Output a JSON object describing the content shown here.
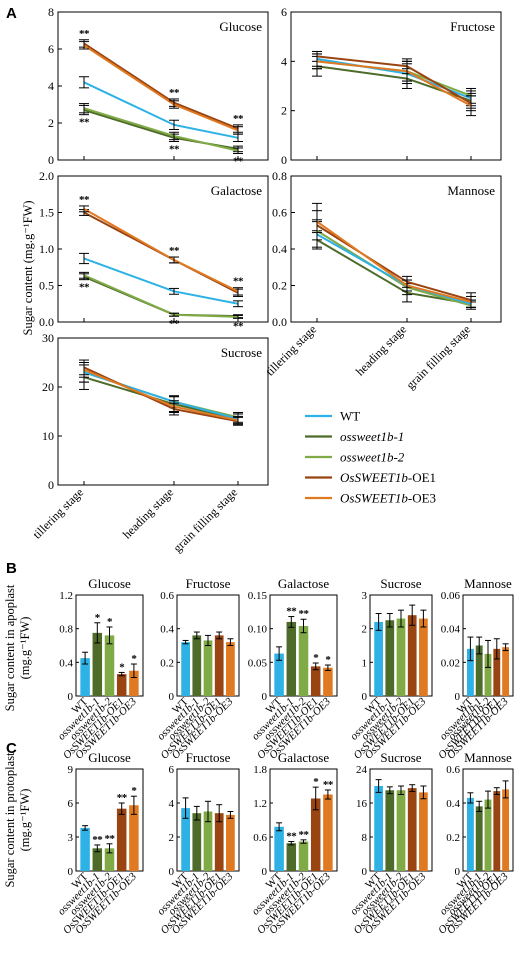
{
  "panels": {
    "A": "A",
    "B": "B",
    "C": "C"
  },
  "labels": {
    "A_ylabel": "Sugar content (mg.g⁻¹FW)",
    "B_ylabel_1": "Sugar content in apoplast",
    "B_ylabel_2": "(mg.g⁻¹FW)",
    "C_ylabel_1": "Sugar content in protoplast",
    "C_ylabel_2": "(mg.g⁻¹FW)"
  },
  "colors": {
    "WT": "#2eb2e6",
    "ossweet1b-1": "#4e6b2a",
    "ossweet1b-2": "#7faa45",
    "OsSWEET1b-OE1": "#9a4412",
    "OsSWEET1b-OE3": "#e07a22"
  },
  "legend": [
    {
      "prefix": "",
      "italic": "",
      "suffix": "WT",
      "key": "WT"
    },
    {
      "prefix": "",
      "italic": "ossweet1b-1",
      "suffix": "",
      "key": "ossweet1b-1"
    },
    {
      "prefix": "",
      "italic": "ossweet1b-2",
      "suffix": "",
      "key": "ossweet1b-2"
    },
    {
      "prefix": "",
      "italic": "OsSWEET1b",
      "suffix": "-OE1",
      "key": "OsSWEET1b-OE1"
    },
    {
      "prefix": "",
      "italic": "OsSWEET1b",
      "suffix": "-OE3",
      "key": "OsSWEET1b-OE3"
    }
  ],
  "chart_data": [
    {
      "panel": "A",
      "type": "line",
      "title": "Glucose",
      "categories": [
        "tillering stage",
        "heading stage",
        "grain filling stage"
      ],
      "ylim": [
        0,
        8
      ],
      "yticks": [
        0,
        2,
        4,
        6,
        8
      ],
      "series": [
        {
          "name": "WT",
          "values": [
            4.2,
            1.9,
            1.2
          ],
          "errors": [
            0.3,
            0.25,
            0.2
          ]
        },
        {
          "name": "ossweet1b-1",
          "values": [
            2.7,
            1.2,
            0.6
          ],
          "errors": [
            0.25,
            0.2,
            0.15
          ]
        },
        {
          "name": "ossweet1b-2",
          "values": [
            2.8,
            1.3,
            0.5
          ],
          "errors": [
            0.25,
            0.2,
            0.15
          ]
        },
        {
          "name": "OsSWEET1b-OE1",
          "values": [
            6.3,
            3.1,
            1.7
          ],
          "errors": [
            0.2,
            0.2,
            0.2
          ]
        },
        {
          "name": "OsSWEET1b-OE3",
          "values": [
            6.2,
            3.0,
            1.6
          ],
          "errors": [
            0.2,
            0.2,
            0.2
          ]
        }
      ],
      "annotations": [
        "**",
        "**",
        "**",
        "**",
        "**",
        "**"
      ]
    },
    {
      "panel": "A",
      "type": "line",
      "title": "Fructose",
      "categories": [
        "tillering stage",
        "heading stage",
        "grain filling stage"
      ],
      "ylim": [
        0,
        6
      ],
      "yticks": [
        0,
        2,
        4,
        6
      ],
      "series": [
        {
          "name": "WT",
          "values": [
            4.1,
            3.5,
            2.5
          ],
          "errors": [
            0.3,
            0.4,
            0.3
          ]
        },
        {
          "name": "ossweet1b-1",
          "values": [
            3.8,
            3.3,
            2.4
          ],
          "errors": [
            0.4,
            0.4,
            0.3
          ]
        },
        {
          "name": "ossweet1b-2",
          "values": [
            4.0,
            3.6,
            2.6
          ],
          "errors": [
            0.3,
            0.4,
            0.3
          ]
        },
        {
          "name": "OsSWEET1b-OE1",
          "values": [
            4.2,
            3.8,
            2.3
          ],
          "errors": [
            0.2,
            0.3,
            0.3
          ]
        },
        {
          "name": "OsSWEET1b-OE3",
          "values": [
            4.0,
            3.6,
            2.2
          ],
          "errors": [
            0.3,
            0.4,
            0.4
          ]
        }
      ]
    },
    {
      "panel": "A",
      "type": "line",
      "title": "Galactose",
      "categories": [
        "tillering stage",
        "heading stage",
        "grain filling stage"
      ],
      "ylim": [
        0,
        2.0
      ],
      "yticks": [
        0.0,
        0.5,
        1.0,
        1.5,
        2.0
      ],
      "series": [
        {
          "name": "WT",
          "values": [
            0.87,
            0.42,
            0.25
          ],
          "errors": [
            0.07,
            0.04,
            0.04
          ]
        },
        {
          "name": "ossweet1b-1",
          "values": [
            0.62,
            0.1,
            0.08
          ],
          "errors": [
            0.04,
            0.02,
            0.02
          ]
        },
        {
          "name": "ossweet1b-2",
          "values": [
            0.64,
            0.1,
            0.07
          ],
          "errors": [
            0.04,
            0.02,
            0.02
          ]
        },
        {
          "name": "OsSWEET1b-OE1",
          "values": [
            1.5,
            0.85,
            0.4
          ],
          "errors": [
            0.04,
            0.04,
            0.05
          ]
        },
        {
          "name": "OsSWEET1b-OE3",
          "values": [
            1.55,
            0.85,
            0.42
          ],
          "errors": [
            0.04,
            0.04,
            0.05
          ]
        }
      ],
      "annotations": [
        "**",
        "**",
        "**",
        "**",
        "**",
        "**"
      ]
    },
    {
      "panel": "A",
      "type": "line",
      "title": "Mannose",
      "categories": [
        "tillering stage",
        "heading stage",
        "grain filling stage"
      ],
      "ylim": [
        0,
        0.8
      ],
      "yticks": [
        0.0,
        0.2,
        0.4,
        0.6,
        0.8
      ],
      "series": [
        {
          "name": "WT",
          "values": [
            0.48,
            0.2,
            0.1
          ],
          "errors": [
            0.08,
            0.03,
            0.02
          ]
        },
        {
          "name": "ossweet1b-1",
          "values": [
            0.45,
            0.16,
            0.1
          ],
          "errors": [
            0.05,
            0.05,
            0.02
          ]
        },
        {
          "name": "ossweet1b-2",
          "values": [
            0.5,
            0.19,
            0.09
          ],
          "errors": [
            0.05,
            0.04,
            0.02
          ]
        },
        {
          "name": "OsSWEET1b-OE1",
          "values": [
            0.53,
            0.22,
            0.12
          ],
          "errors": [
            0.12,
            0.03,
            0.04
          ]
        },
        {
          "name": "OsSWEET1b-OE3",
          "values": [
            0.55,
            0.2,
            0.11
          ],
          "errors": [
            0.06,
            0.03,
            0.03
          ]
        }
      ]
    },
    {
      "panel": "A",
      "type": "line",
      "title": "Sucrose",
      "categories": [
        "tillering stage",
        "heading stage",
        "grain filling stage"
      ],
      "ylim": [
        0,
        30
      ],
      "yticks": [
        0,
        10,
        20,
        30
      ],
      "series": [
        {
          "name": "WT",
          "values": [
            23,
            17,
            13.5
          ],
          "errors": [
            2,
            1.2,
            1
          ]
        },
        {
          "name": "ossweet1b-1",
          "values": [
            22,
            16.5,
            13.5
          ],
          "errors": [
            2.5,
            1.5,
            1
          ]
        },
        {
          "name": "ossweet1b-2",
          "values": [
            23,
            17,
            13.8
          ],
          "errors": [
            2,
            1.2,
            1
          ]
        },
        {
          "name": "OsSWEET1b-OE1",
          "values": [
            24,
            15.5,
            13
          ],
          "errors": [
            1.5,
            1.2,
            0.8
          ]
        },
        {
          "name": "OsSWEET1b-OE3",
          "values": [
            23.5,
            16,
            13.2
          ],
          "errors": [
            1.5,
            1.2,
            0.8
          ]
        }
      ]
    },
    {
      "panel": "B",
      "type": "bar",
      "title": "Glucose",
      "categories": [
        "WT",
        "ossweet1b-1",
        "ossweet1b-2",
        "OsSWEET1b-OE1",
        "OsSWEET1b-OE3"
      ],
      "ylim": [
        0,
        1.2
      ],
      "yticks": [
        0,
        0.4,
        0.8,
        1.2
      ],
      "ytick_labels": [
        "0",
        "0.4",
        "0.8",
        "1.2"
      ],
      "values": [
        0.45,
        0.75,
        0.72,
        0.26,
        0.3
      ],
      "errors": [
        0.07,
        0.12,
        0.1,
        0.02,
        0.08
      ],
      "stars": [
        "",
        "*",
        "*",
        "*",
        "*"
      ]
    },
    {
      "panel": "B",
      "type": "bar",
      "title": "Fructose",
      "categories": [
        "WT",
        "ossweet1b-1",
        "ossweet1b-2",
        "OsSWEET1b-OE1",
        "OsSWEET1b-OE3"
      ],
      "ylim": [
        0,
        0.6
      ],
      "yticks": [
        0,
        0.2,
        0.4,
        0.6
      ],
      "ytick_labels": [
        "0",
        "0.2",
        "0.4",
        "0.6"
      ],
      "values": [
        0.32,
        0.36,
        0.33,
        0.36,
        0.32
      ],
      "errors": [
        0.01,
        0.02,
        0.03,
        0.02,
        0.02
      ],
      "stars": [
        "",
        "",
        "",
        "",
        ""
      ]
    },
    {
      "panel": "B",
      "type": "bar",
      "title": "Galactose",
      "categories": [
        "WT",
        "ossweet1b-1",
        "ossweet1b-2",
        "OsSWEET1b-OE1",
        "OsSWEET1b-OE3"
      ],
      "ylim": [
        0,
        0.15
      ],
      "yticks": [
        0,
        0.05,
        0.1,
        0.15
      ],
      "ytick_labels": [
        "0",
        "0.05",
        "0.10",
        "0.15"
      ],
      "values": [
        0.063,
        0.11,
        0.104,
        0.044,
        0.042
      ],
      "errors": [
        0.01,
        0.008,
        0.01,
        0.005,
        0.004
      ],
      "stars": [
        "",
        "**",
        "**",
        "*",
        "*"
      ]
    },
    {
      "panel": "B",
      "type": "bar",
      "title": "Sucrose",
      "categories": [
        "WT",
        "ossweet1b-1",
        "ossweet1b-2",
        "OsSWEET1b-OE1",
        "OsSWEET1b-OE3"
      ],
      "ylim": [
        0,
        3
      ],
      "yticks": [
        0,
        1,
        2,
        3
      ],
      "ytick_labels": [
        "0",
        "1",
        "2",
        "3"
      ],
      "values": [
        2.2,
        2.25,
        2.3,
        2.4,
        2.3
      ],
      "errors": [
        0.25,
        0.2,
        0.25,
        0.3,
        0.25
      ],
      "stars": [
        "",
        "",
        "",
        "",
        ""
      ]
    },
    {
      "panel": "B",
      "type": "bar",
      "title": "Mannose",
      "categories": [
        "WT",
        "ossweet1b-1",
        "ossweet1b-2",
        "OsSWEET1b-OE1",
        "OsSWEET1b-OE3"
      ],
      "ylim": [
        0,
        0.06
      ],
      "yticks": [
        0,
        0.02,
        0.04,
        0.06
      ],
      "ytick_labels": [
        "0",
        "0.02",
        "0.04",
        "0.06"
      ],
      "values": [
        0.028,
        0.03,
        0.025,
        0.028,
        0.029
      ],
      "errors": [
        0.007,
        0.005,
        0.008,
        0.006,
        0.002
      ],
      "stars": [
        "",
        "",
        "",
        "",
        ""
      ]
    },
    {
      "panel": "C",
      "type": "bar",
      "title": "Glucose",
      "categories": [
        "WT",
        "ossweet1b-1",
        "ossweet1b-2",
        "OsSWEET1b-OE1",
        "OsSWEET1b-OE3"
      ],
      "ylim": [
        0,
        9
      ],
      "yticks": [
        0,
        3,
        6,
        9
      ],
      "ytick_labels": [
        "0",
        "3",
        "6",
        "9"
      ],
      "values": [
        3.8,
        2.0,
        2.0,
        5.5,
        5.8
      ],
      "errors": [
        0.2,
        0.3,
        0.4,
        0.5,
        0.8
      ],
      "stars": [
        "",
        "**",
        "**",
        "**",
        "*"
      ]
    },
    {
      "panel": "C",
      "type": "bar",
      "title": "Fructose",
      "categories": [
        "WT",
        "ossweet1b-1",
        "ossweet1b-2",
        "OsSWEET1b-OE1",
        "OsSWEET1b-OE3"
      ],
      "ylim": [
        0,
        6
      ],
      "yticks": [
        0,
        2,
        4,
        6
      ],
      "ytick_labels": [
        "0",
        "2",
        "4",
        "6"
      ],
      "values": [
        3.7,
        3.4,
        3.5,
        3.4,
        3.3
      ],
      "errors": [
        0.6,
        0.4,
        0.6,
        0.5,
        0.2
      ],
      "stars": [
        "",
        "",
        "",
        "",
        ""
      ]
    },
    {
      "panel": "C",
      "type": "bar",
      "title": "Galactose",
      "categories": [
        "WT",
        "ossweet1b-1",
        "ossweet1b-2",
        "OsSWEET1b-OE1",
        "OsSWEET1b-OE3"
      ],
      "ylim": [
        0,
        1.8
      ],
      "yticks": [
        0,
        0.6,
        1.2,
        1.8
      ],
      "ytick_labels": [
        "0",
        "0.6",
        "1.2",
        "1.8"
      ],
      "values": [
        0.78,
        0.49,
        0.52,
        1.28,
        1.35
      ],
      "errors": [
        0.07,
        0.03,
        0.03,
        0.2,
        0.08
      ],
      "stars": [
        "",
        "**",
        "**",
        "*",
        "**"
      ]
    },
    {
      "panel": "C",
      "type": "bar",
      "title": "Sucrose",
      "categories": [
        "WT",
        "ossweet1b-1",
        "ossweet1b-2",
        "OsSWEET1b-OE1",
        "OsSWEET1b-OE3"
      ],
      "ylim": [
        0,
        24
      ],
      "yticks": [
        0,
        8,
        16,
        24
      ],
      "ytick_labels": [
        "0",
        "8",
        "16",
        "24"
      ],
      "values": [
        20,
        19,
        19,
        19.5,
        18.5
      ],
      "errors": [
        1.5,
        0.8,
        1,
        0.8,
        1.5
      ],
      "stars": [
        "",
        "",
        "",
        "",
        ""
      ]
    },
    {
      "panel": "C",
      "type": "bar",
      "title": "Mannose",
      "categories": [
        "WT",
        "ossweet1b-1",
        "ossweet1b-2",
        "OsSWEET1b-OE1",
        "OsSWEET1b-OE3"
      ],
      "ylim": [
        0,
        0.6
      ],
      "yticks": [
        0,
        0.2,
        0.4,
        0.6
      ],
      "ytick_labels": [
        "0",
        "0.2",
        "0.4",
        "0.6"
      ],
      "values": [
        0.43,
        0.38,
        0.42,
        0.47,
        0.48
      ],
      "errors": [
        0.03,
        0.03,
        0.05,
        0.02,
        0.05
      ],
      "stars": [
        "",
        "",
        "",
        "",
        ""
      ]
    }
  ]
}
